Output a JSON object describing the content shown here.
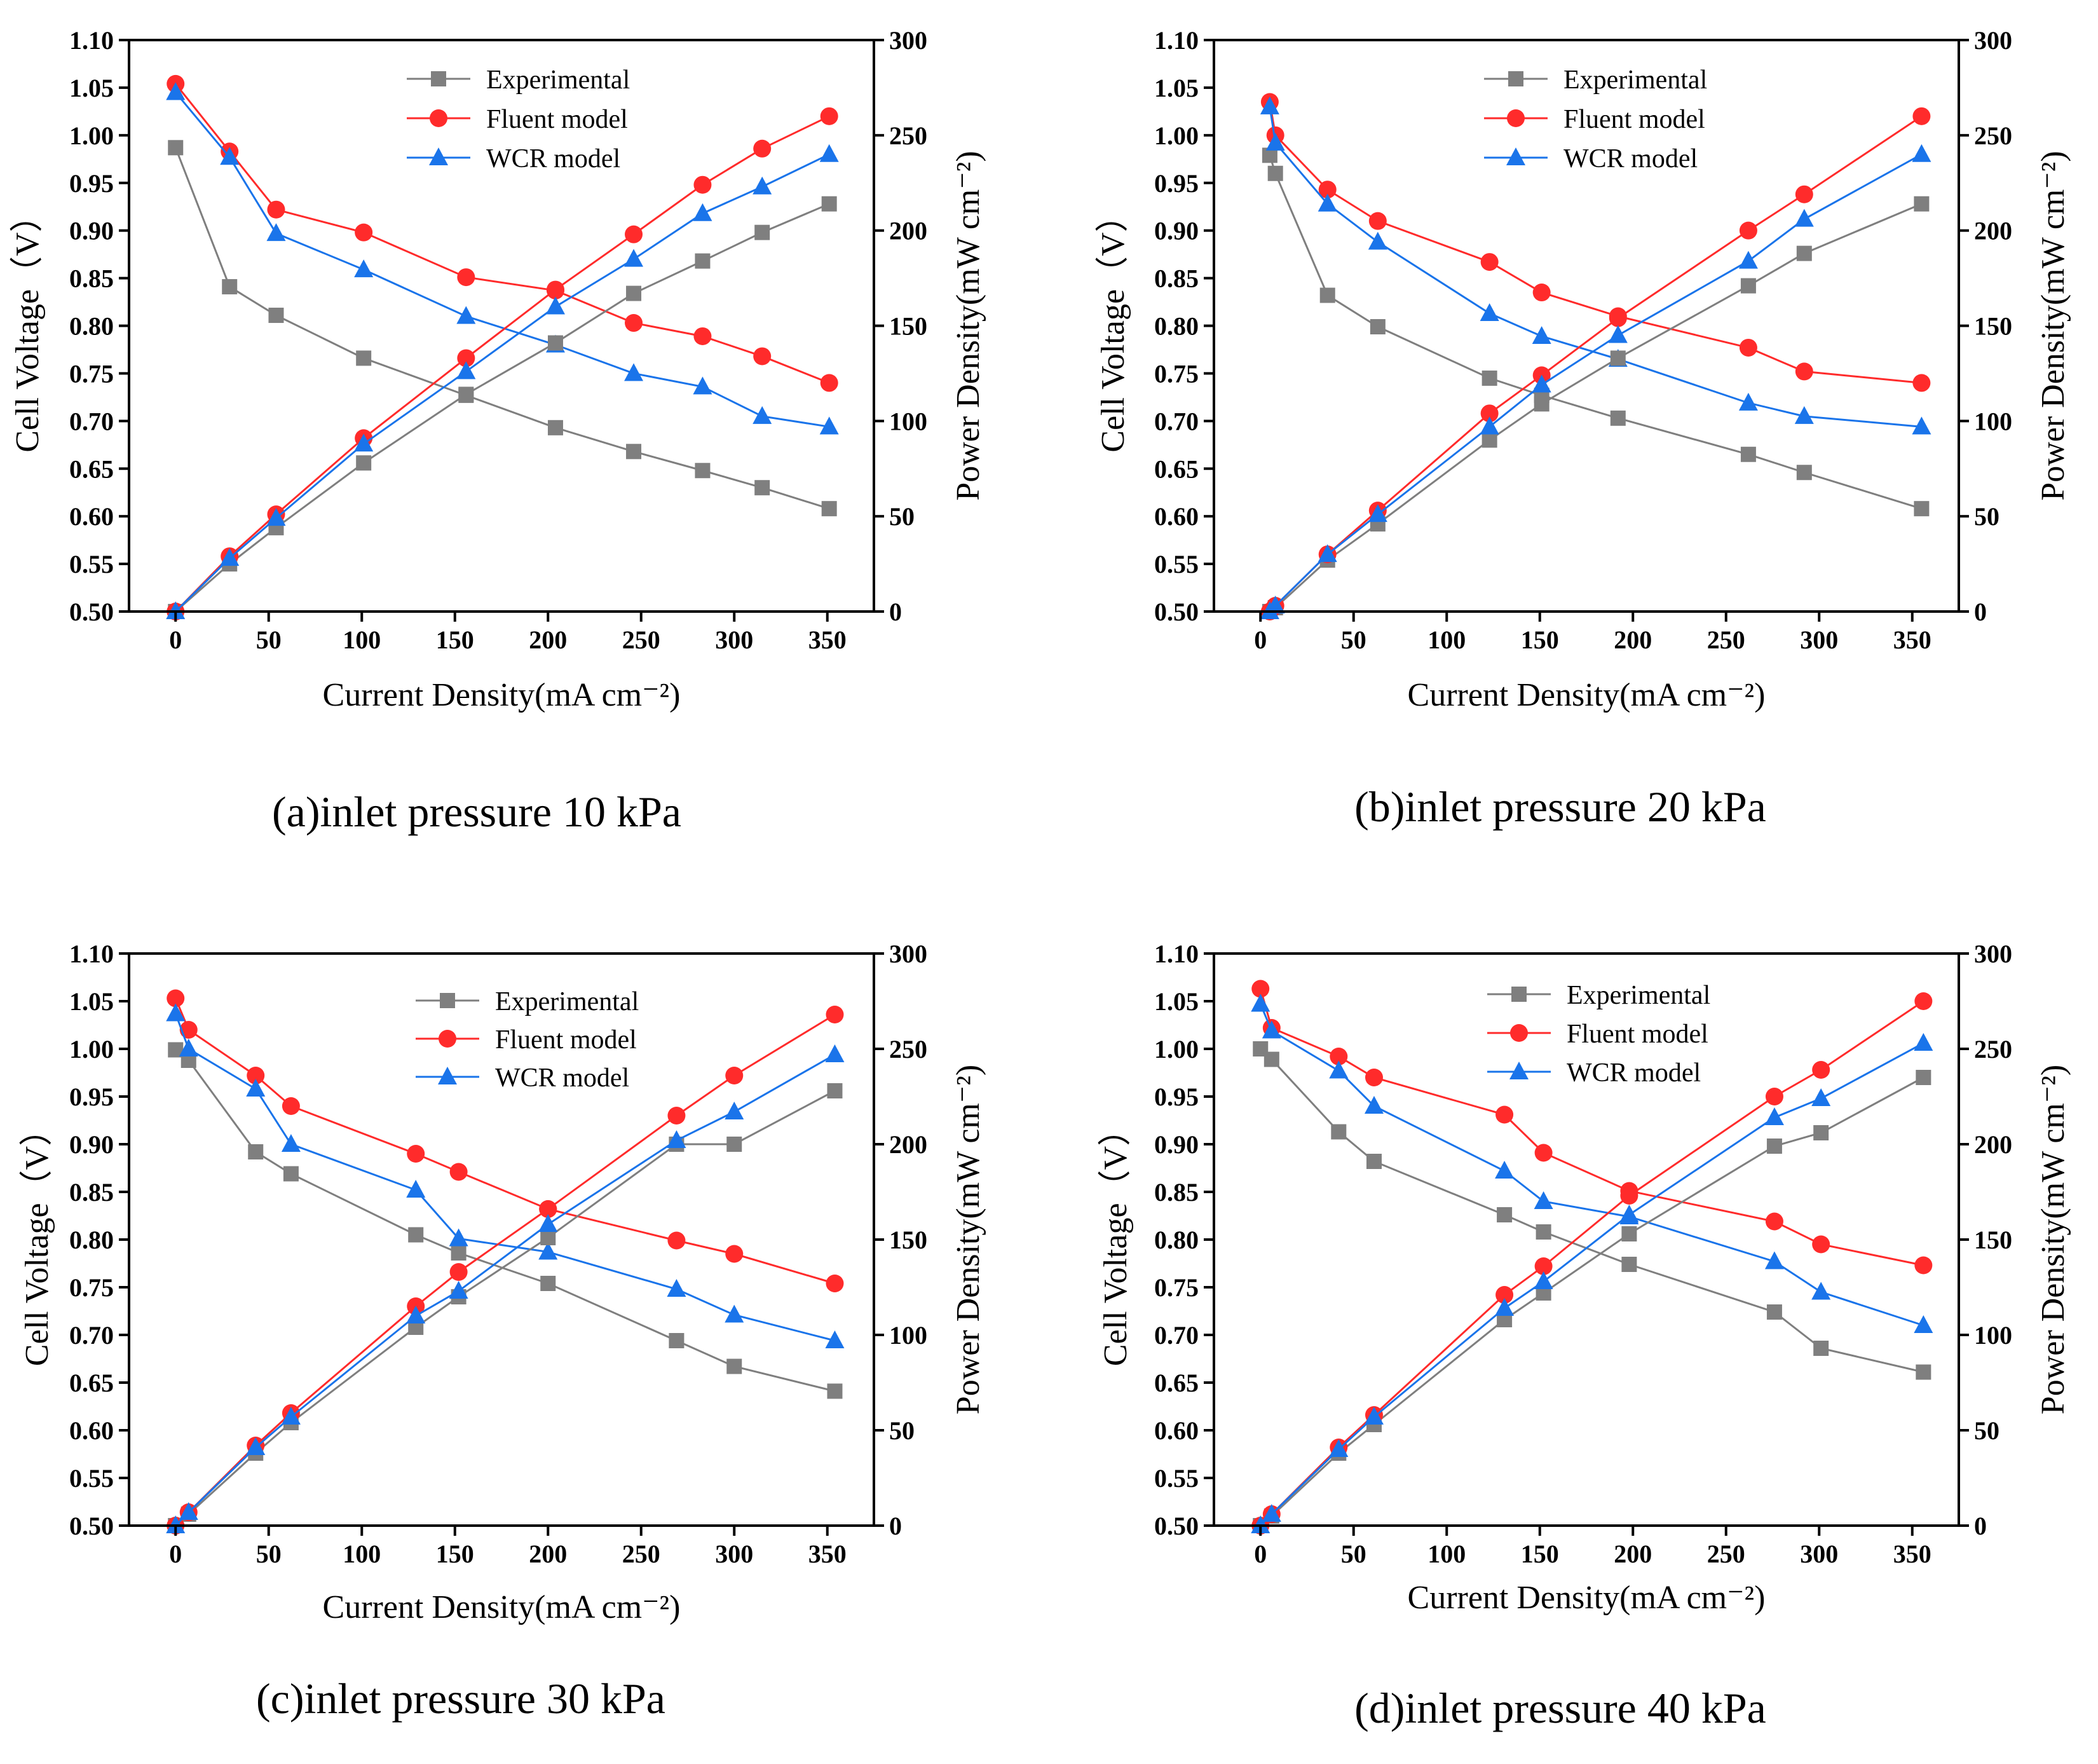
{
  "figure": {
    "legend_labels": [
      "Experimental",
      "Fluent model",
      "WCR model"
    ],
    "series_colors": {
      "Experimental": "#7f7f7f",
      "Fluent model": "#ff2b2b",
      "WCR model": "#1a74ea"
    },
    "series_markers": {
      "Experimental": "square",
      "Fluent model": "circle",
      "WCR model": "triangle"
    }
  },
  "chart_data": [
    {
      "type": "line",
      "panel": "a",
      "caption": "(a)inlet pressure 10 kPa",
      "xlabel": "Current Density(mA cm⁻²)",
      "ylabel": "Cell Voltage（V）",
      "y2label": "Power Density(mW cm⁻²)",
      "xlim": [
        -25,
        375
      ],
      "ylim": [
        0.5,
        1.1
      ],
      "y2lim": [
        0,
        300
      ],
      "xticks": [
        0,
        50,
        100,
        150,
        200,
        250,
        300,
        350
      ],
      "yticks": [
        0.5,
        0.55,
        0.6,
        0.65,
        0.7,
        0.75,
        0.8,
        0.85,
        0.9,
        0.95,
        1.0,
        1.05,
        1.1
      ],
      "y2ticks": [
        0,
        50,
        100,
        150,
        200,
        250,
        300
      ],
      "series": [
        {
          "name": "Experimental",
          "axis": "voltage",
          "x": [
            0,
            29,
            54,
            101,
            156,
            204,
            246,
            283,
            315,
            351
          ],
          "values": [
            0.987,
            0.841,
            0.811,
            0.766,
            0.727,
            0.693,
            0.668,
            0.648,
            0.63,
            0.608
          ]
        },
        {
          "name": "Fluent model",
          "axis": "voltage",
          "x": [
            0,
            29,
            54,
            101,
            156,
            204,
            246,
            283,
            315,
            351
          ],
          "values": [
            1.054,
            0.983,
            0.922,
            0.898,
            0.851,
            0.837,
            0.803,
            0.789,
            0.768,
            0.74
          ]
        },
        {
          "name": "WCR model",
          "axis": "voltage",
          "x": [
            0,
            29,
            54,
            101,
            156,
            204,
            246,
            283,
            315,
            351
          ],
          "values": [
            1.045,
            0.977,
            0.897,
            0.859,
            0.81,
            0.78,
            0.75,
            0.736,
            0.705,
            0.694
          ]
        },
        {
          "name": "Experimental",
          "axis": "power",
          "x": [
            0,
            29,
            54,
            101,
            156,
            204,
            246,
            283,
            315,
            351
          ],
          "values": [
            0,
            25,
            44,
            78,
            114,
            141,
            167,
            184,
            199,
            214
          ]
        },
        {
          "name": "Fluent model",
          "axis": "power",
          "x": [
            0,
            29,
            54,
            101,
            156,
            204,
            246,
            283,
            315,
            351
          ],
          "values": [
            0,
            29,
            51,
            91,
            133,
            169,
            198,
            224,
            243,
            260
          ]
        },
        {
          "name": "WCR model",
          "axis": "power",
          "x": [
            0,
            29,
            54,
            101,
            156,
            204,
            246,
            283,
            315,
            351
          ],
          "values": [
            0,
            28,
            49,
            88,
            126,
            160,
            185,
            209,
            223,
            240
          ]
        }
      ]
    },
    {
      "type": "line",
      "panel": "b",
      "caption": "(b)inlet pressure 20 kPa",
      "xlabel": "Current Density(mA cm⁻²)",
      "ylabel": "Cell Voltage（V）",
      "y2label": "Power Density(mW cm⁻²)",
      "xlim": [
        -25,
        375
      ],
      "ylim": [
        0.5,
        1.1
      ],
      "y2lim": [
        0,
        300
      ],
      "xticks": [
        0,
        50,
        100,
        150,
        200,
        250,
        300,
        350
      ],
      "yticks": [
        0.5,
        0.55,
        0.6,
        0.65,
        0.7,
        0.75,
        0.8,
        0.85,
        0.9,
        0.95,
        1.0,
        1.05,
        1.1
      ],
      "y2ticks": [
        0,
        50,
        100,
        150,
        200,
        250,
        300
      ],
      "series": [
        {
          "name": "Experimental",
          "axis": "voltage",
          "x": [
            5,
            8,
            36,
            63,
            123,
            151,
            192,
            262,
            292,
            355
          ],
          "values": [
            0.979,
            0.96,
            0.832,
            0.799,
            0.745,
            0.727,
            0.703,
            0.665,
            0.646,
            0.608
          ]
        },
        {
          "name": "Fluent model",
          "axis": "voltage",
          "x": [
            5,
            8,
            36,
            63,
            123,
            151,
            192,
            262,
            292,
            355
          ],
          "values": [
            1.035,
            1.0,
            0.943,
            0.91,
            0.867,
            0.835,
            0.81,
            0.777,
            0.752,
            0.74
          ]
        },
        {
          "name": "WCR model",
          "axis": "voltage",
          "x": [
            5,
            8,
            36,
            63,
            123,
            151,
            192,
            262,
            292,
            355
          ],
          "values": [
            1.03,
            0.992,
            0.928,
            0.888,
            0.813,
            0.789,
            0.765,
            0.719,
            0.705,
            0.694
          ]
        },
        {
          "name": "Experimental",
          "axis": "power",
          "x": [
            5,
            8,
            36,
            63,
            123,
            151,
            192,
            262,
            292,
            355
          ],
          "values": [
            0,
            2,
            27,
            46,
            90,
            109,
            133,
            171,
            188,
            214
          ]
        },
        {
          "name": "Fluent model",
          "axis": "power",
          "x": [
            5,
            8,
            36,
            63,
            123,
            151,
            192,
            262,
            292,
            355
          ],
          "values": [
            0,
            3,
            30,
            53,
            104,
            124,
            154,
            200,
            219,
            260
          ]
        },
        {
          "name": "WCR model",
          "axis": "power",
          "x": [
            5,
            8,
            36,
            63,
            123,
            151,
            192,
            262,
            292,
            355
          ],
          "values": [
            0,
            3,
            30,
            51,
            97,
            119,
            145,
            184,
            206,
            240
          ]
        }
      ]
    },
    {
      "type": "line",
      "panel": "c",
      "caption": "(c)inlet pressure 30 kPa",
      "xlabel": "Current Density(mA cm⁻²)",
      "ylabel": "Cell Voltage（V）",
      "y2label": "Power Density(mW cm⁻²)",
      "xlim": [
        -25,
        375
      ],
      "ylim": [
        0.5,
        1.1
      ],
      "y2lim": [
        0,
        300
      ],
      "xticks": [
        0,
        50,
        100,
        150,
        200,
        250,
        300,
        350
      ],
      "yticks": [
        0.5,
        0.55,
        0.6,
        0.65,
        0.7,
        0.75,
        0.8,
        0.85,
        0.9,
        0.95,
        1.0,
        1.05,
        1.1
      ],
      "y2ticks": [
        0,
        50,
        100,
        150,
        200,
        250,
        300
      ],
      "series": [
        {
          "name": "Experimental",
          "axis": "voltage",
          "x": [
            0,
            7,
            43,
            62,
            129,
            152,
            200,
            269,
            300,
            354
          ],
          "values": [
            0.999,
            0.988,
            0.892,
            0.869,
            0.805,
            0.786,
            0.754,
            0.694,
            0.667,
            0.641
          ]
        },
        {
          "name": "Fluent model",
          "axis": "voltage",
          "x": [
            0,
            7,
            43,
            62,
            129,
            152,
            200,
            269,
            300,
            354
          ],
          "values": [
            1.053,
            1.02,
            0.972,
            0.94,
            0.89,
            0.871,
            0.832,
            0.799,
            0.785,
            0.754
          ]
        },
        {
          "name": "WCR model",
          "axis": "voltage",
          "x": [
            0,
            7,
            43,
            62,
            129,
            152,
            200,
            269,
            300,
            354
          ],
          "values": [
            1.037,
            1.0,
            0.958,
            0.9,
            0.852,
            0.801,
            0.787,
            0.748,
            0.721,
            0.694
          ]
        },
        {
          "name": "Experimental",
          "axis": "power",
          "x": [
            0,
            7,
            43,
            62,
            129,
            152,
            200,
            269,
            300,
            354
          ],
          "values": [
            0,
            6,
            38,
            54,
            104,
            120,
            151,
            200,
            200,
            228
          ]
        },
        {
          "name": "Fluent model",
          "axis": "power",
          "x": [
            0,
            7,
            43,
            62,
            129,
            152,
            200,
            269,
            300,
            354
          ],
          "values": [
            0,
            7,
            42,
            59,
            115,
            133,
            166,
            215,
            236,
            268
          ]
        },
        {
          "name": "WCR model",
          "axis": "power",
          "x": [
            0,
            7,
            43,
            62,
            129,
            152,
            200,
            269,
            300,
            354
          ],
          "values": [
            0,
            7,
            41,
            57,
            110,
            123,
            158,
            202,
            217,
            247
          ]
        }
      ]
    },
    {
      "type": "line",
      "panel": "d",
      "caption": "(d)inlet pressure 40 kPa",
      "xlabel": "Current Density(mA cm⁻²)",
      "ylabel": "Cell Voltage（V）",
      "y2label": "Power Density(mW cm⁻²)",
      "xlim": [
        -25,
        375
      ],
      "ylim": [
        0.5,
        1.1
      ],
      "y2lim": [
        0,
        300
      ],
      "xticks": [
        0,
        50,
        100,
        150,
        200,
        250,
        300,
        350
      ],
      "yticks": [
        0.5,
        0.55,
        0.6,
        0.65,
        0.7,
        0.75,
        0.8,
        0.85,
        0.9,
        0.95,
        1.0,
        1.05,
        1.1
      ],
      "y2ticks": [
        0,
        50,
        100,
        150,
        200,
        250,
        300
      ],
      "series": [
        {
          "name": "Experimental",
          "axis": "voltage",
          "x": [
            0,
            6,
            42,
            61,
            131,
            152,
            198,
            276,
            301,
            356
          ],
          "values": [
            1.0,
            0.989,
            0.913,
            0.882,
            0.826,
            0.808,
            0.774,
            0.724,
            0.686,
            0.661
          ]
        },
        {
          "name": "Fluent model",
          "axis": "voltage",
          "x": [
            0,
            6,
            42,
            61,
            131,
            152,
            198,
            276,
            301,
            356
          ],
          "values": [
            1.063,
            1.022,
            0.992,
            0.97,
            0.931,
            0.891,
            0.851,
            0.819,
            0.795,
            0.773
          ]
        },
        {
          "name": "WCR model",
          "axis": "voltage",
          "x": [
            0,
            6,
            42,
            61,
            131,
            152,
            198,
            276,
            301,
            356
          ],
          "values": [
            1.047,
            1.019,
            0.977,
            0.94,
            0.872,
            0.84,
            0.824,
            0.777,
            0.745,
            0.71
          ]
        },
        {
          "name": "Experimental",
          "axis": "power",
          "x": [
            0,
            6,
            42,
            61,
            131,
            152,
            198,
            276,
            301,
            356
          ],
          "values": [
            0,
            5,
            38,
            53,
            108,
            122,
            153,
            199,
            206,
            235
          ]
        },
        {
          "name": "Fluent model",
          "axis": "power",
          "x": [
            0,
            6,
            42,
            61,
            131,
            152,
            198,
            276,
            301,
            356
          ],
          "values": [
            0,
            6,
            41,
            58,
            121,
            136,
            173,
            225,
            239,
            275
          ]
        },
        {
          "name": "WCR model",
          "axis": "power",
          "x": [
            0,
            6,
            42,
            61,
            131,
            152,
            198,
            276,
            301,
            356
          ],
          "values": [
            0,
            6,
            40,
            57,
            114,
            128,
            163,
            214,
            224,
            253
          ]
        }
      ]
    }
  ]
}
